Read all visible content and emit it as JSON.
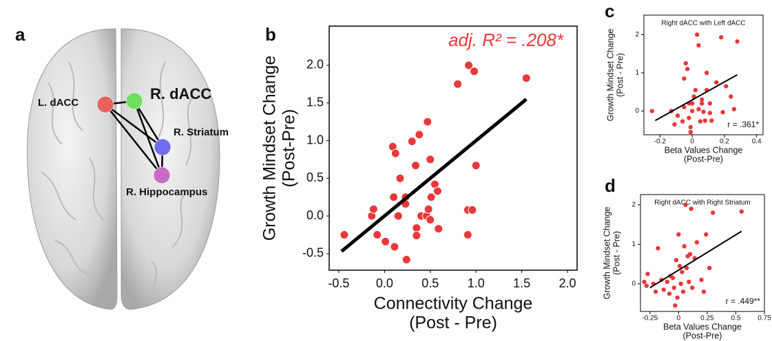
{
  "brain_panel": {
    "panel": "a",
    "regions": [
      {
        "label": "L. dACC",
        "color": "#e8615f"
      },
      {
        "label": "R. dACC",
        "color": "#6ee060"
      },
      {
        "label": "R. Striatum",
        "color": "#6f6cf0"
      },
      {
        "label": "R. Hippocampus",
        "color": "#c96cc9"
      }
    ]
  },
  "chart_data": [
    {
      "type": "scatter",
      "panel": "b",
      "annotation": "adj. R² = .208*",
      "xlabel": [
        "Connectivity Change",
        "(Post - Pre)"
      ],
      "ylabel": [
        "Growth Mindset Change",
        "(Post-Pre)"
      ],
      "color": "#e8383b",
      "line_color": "#000000",
      "x": [
        -0.44,
        -0.14,
        -0.12,
        -0.08,
        0.01,
        0.09,
        0.12,
        0.11,
        0.14,
        0.15,
        0.17,
        0.1,
        0.23,
        0.23,
        0.24,
        0.3,
        0.38,
        0.34,
        0.35,
        0.35,
        0.4,
        0.46,
        0.5,
        0.47,
        0.5,
        0.51,
        0.48,
        0.55,
        0.58,
        0.59,
        0.91,
        0.96,
        0.8,
        0.92,
        0.98,
        1.0,
        0.91,
        1.55
      ],
      "values": [
        -0.25,
        0.0,
        0.09,
        -0.25,
        -0.34,
        0.92,
        0.83,
        -0.41,
        0.0,
        0.0,
        0.5,
        0.25,
        0.25,
        0.16,
        -0.58,
        0.99,
        1.08,
        0.67,
        -0.16,
        -0.26,
        0.0,
        0.0,
        -0.05,
        1.25,
        0.75,
        0.25,
        0.09,
        0.42,
        0.33,
        -0.17,
        0.08,
        0.08,
        1.75,
        2.0,
        1.92,
        0.67,
        -0.25,
        1.83
      ],
      "fit_line": {
        "x": [
          -0.47,
          1.55
        ],
        "y": [
          -0.47,
          1.55
        ]
      },
      "xlim": [
        -0.605,
        2.105
      ],
      "ylim": [
        -0.72,
        2.52
      ],
      "xticks": [
        -0.5,
        {
          "value": 0,
          "label": "0.0"
        },
        0.5,
        {
          "value": 1,
          "label": "1.0"
        },
        1.5,
        {
          "value": 2,
          "label": "2.0"
        }
      ],
      "yticks": [
        -0.5,
        {
          "value": 0,
          "label": "0.0"
        },
        0.5,
        {
          "value": 1,
          "label": "1.0"
        },
        1.5,
        {
          "value": 2,
          "label": "2.0"
        }
      ]
    },
    {
      "type": "scatter",
      "panel": "c",
      "title": "Right dACC with Left dACC",
      "annotation": "r = .361*",
      "xlabel": [
        "Beta Values Change",
        "(Post-Pre)"
      ],
      "ylabel": [
        "Growth Mindset Change",
        "(Post - Pre)"
      ],
      "color": "#e8383b",
      "line_color": "#000000",
      "x": [
        -0.25,
        -0.13,
        -0.11,
        -0.09,
        -0.06,
        -0.05,
        -0.05,
        -0.04,
        -0.03,
        -0.02,
        -0.02,
        -0.01,
        -0.01,
        0,
        0,
        0.01,
        0.02,
        0.03,
        0.04,
        0.04,
        0.05,
        0.06,
        0.06,
        0.07,
        0.08,
        0.09,
        0.09,
        0.11,
        0.11,
        0.12,
        0.15,
        0.18,
        0.19,
        0.21,
        0.24,
        0.26,
        0.28
      ],
      "values": [
        0,
        0,
        -0.35,
        -0.12,
        -0.27,
        0.1,
        0.85,
        1.25,
        1.1,
        0.2,
        -0.18,
        -0.42,
        -0.55,
        0.2,
        0,
        0.38,
        0.55,
        2.0,
        1.72,
        0.05,
        -0.27,
        0.2,
        0.3,
        -0.02,
        -0.25,
        1.0,
        0.55,
        0.2,
        -0.05,
        -0.25,
        0.75,
        1.93,
        -0.03,
        0.65,
        0.38,
        0.05,
        1.82
      ],
      "fit_line": {
        "x": [
          -0.23,
          0.28
        ],
        "y": [
          -0.25,
          0.95
        ]
      },
      "xlim": [
        -0.3,
        0.44
      ],
      "ylim": [
        -0.62,
        2.51
      ],
      "xticks": [
        -0.2,
        0,
        0.2,
        0.4
      ],
      "yticks": [
        0,
        1,
        2
      ]
    },
    {
      "type": "scatter",
      "panel": "d",
      "title": "Right dACC with Right Striatum",
      "annotation": "r = .449**",
      "xlabel": [
        "Beta Values Change",
        "(Post-Pre)"
      ],
      "ylabel": [
        "Growth Mindset Change",
        "(Post - Pre)"
      ],
      "color": "#e8383b",
      "line_color": "#000000",
      "x": [
        -0.3,
        -0.28,
        -0.27,
        -0.22,
        -0.2,
        -0.18,
        -0.15,
        -0.13,
        -0.1,
        -0.08,
        -0.07,
        -0.05,
        -0.04,
        -0.03,
        -0.02,
        -0.01,
        0,
        0.01,
        0.02,
        0.03,
        0.04,
        0.05,
        0.06,
        0.07,
        0.08,
        0.09,
        0.1,
        0.11,
        0.12,
        0.14,
        0.16,
        0.2,
        0.22,
        0.24,
        0.27,
        0.3,
        0.55
      ],
      "values": [
        0.05,
        -0.05,
        0.25,
        0,
        -0.2,
        0.9,
        0.1,
        -0.15,
        0.05,
        -0.25,
        0.2,
        0.15,
        -0.1,
        -0.55,
        0.6,
        -0.35,
        1.25,
        0.45,
        0,
        0.3,
        -0.2,
        0.95,
        2.0,
        0.4,
        0.7,
        0.05,
        0.75,
        1.9,
        -0.1,
        0.65,
        1.05,
        0.1,
        -0.2,
        1.25,
        0.4,
        1.8,
        1.83
      ],
      "fit_line": {
        "x": [
          -0.25,
          0.55
        ],
        "y": [
          -0.1,
          1.33
        ]
      },
      "xlim": [
        -0.333,
        0.75
      ],
      "ylim": [
        -0.7,
        2.26
      ],
      "xticks": [
        -0.25,
        0,
        0.25,
        0.5,
        0.75
      ],
      "yticks": [
        0,
        1,
        2
      ]
    }
  ]
}
